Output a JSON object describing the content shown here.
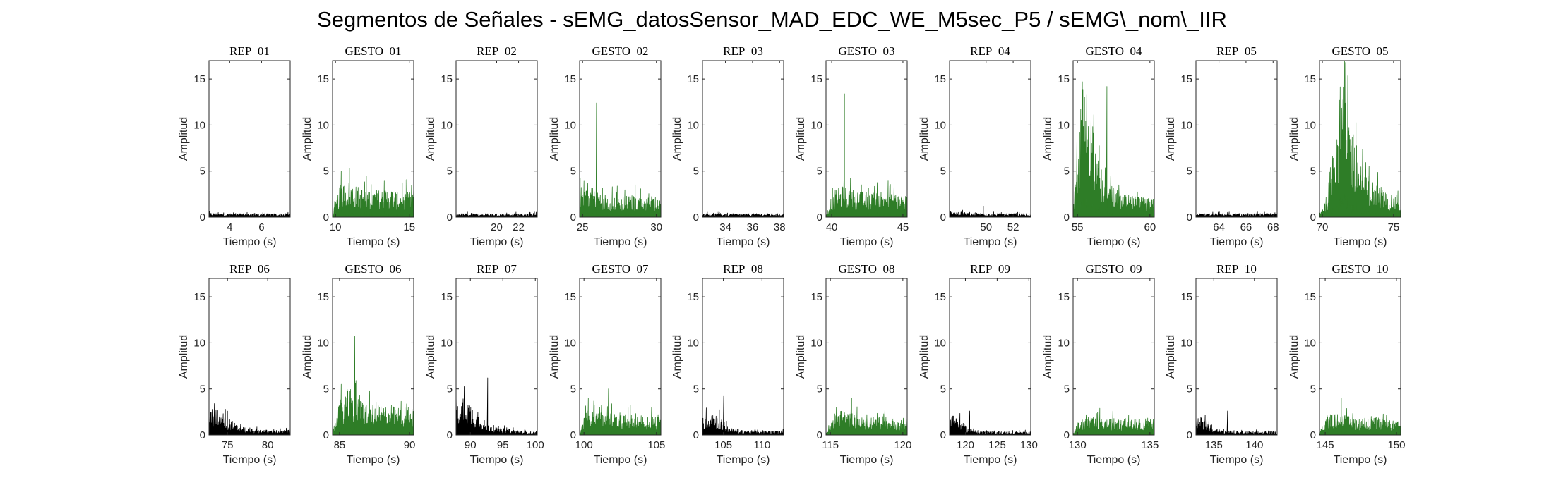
{
  "title": "Segmentos de Señales - sEMG_datosSensor_MAD_EDC_WE_M5sec_P5 / sEMG\\_nom\\_IIR",
  "colors": {
    "rep": "#000000",
    "gesto": "#2e7d27",
    "axis": "#262626"
  },
  "chart_data": [
    {
      "type": "area",
      "title": "REP_01",
      "xlabel": "Tiempo (s)",
      "ylabel": "Amplitud",
      "xlim": [
        2.7,
        7.8
      ],
      "ylim": [
        0,
        17
      ],
      "xticks": [
        4,
        6
      ],
      "yticks": [
        0,
        5,
        10,
        15
      ],
      "color": "rep",
      "amp": [
        0.35,
        0.3,
        0.3,
        0.3,
        0.3,
        0.3
      ]
    },
    {
      "type": "area",
      "title": "GESTO_01",
      "xlabel": "Tiempo (s)",
      "ylabel": "Amplitud",
      "xlim": [
        9.8,
        15.3
      ],
      "ylim": [
        0,
        17
      ],
      "xticks": [
        10,
        15
      ],
      "yticks": [
        0,
        5,
        10,
        15
      ],
      "color": "gesto",
      "peak": 5.3,
      "amp": [
        0.3,
        2.8,
        3.0,
        2.6,
        2.4,
        2.3,
        2.3,
        2.5,
        2.1,
        2.2,
        2.0
      ]
    },
    {
      "type": "area",
      "title": "REP_02",
      "xlabel": "Tiempo (s)",
      "ylabel": "Amplitud",
      "xlim": [
        16.3,
        23.7
      ],
      "ylim": [
        0,
        17
      ],
      "xticks": [
        20,
        22
      ],
      "yticks": [
        0,
        5,
        10,
        15
      ],
      "color": "rep",
      "amp": [
        0.3,
        0.3,
        0.3,
        0.3,
        0.3,
        0.3
      ]
    },
    {
      "type": "area",
      "title": "GESTO_02",
      "xlabel": "Tiempo (s)",
      "ylabel": "Amplitud",
      "xlim": [
        24.8,
        30.3
      ],
      "ylim": [
        0,
        17
      ],
      "xticks": [
        25,
        30
      ],
      "yticks": [
        0,
        5,
        10,
        15
      ],
      "color": "gesto",
      "peak": 12.4,
      "amp": [
        2.5,
        3.0,
        2.5,
        2.0,
        1.9,
        1.8,
        1.8,
        1.9,
        1.7,
        1.8,
        1.6
      ]
    },
    {
      "type": "area",
      "title": "REP_03",
      "xlabel": "Tiempo (s)",
      "ylabel": "Amplitud",
      "xlim": [
        32.3,
        38.3
      ],
      "ylim": [
        0,
        17
      ],
      "xticks": [
        34,
        36,
        38
      ],
      "yticks": [
        0,
        5,
        10,
        15
      ],
      "color": "rep",
      "amp": [
        0.3,
        0.3,
        0.3,
        0.3,
        0.3,
        0.3
      ]
    },
    {
      "type": "area",
      "title": "GESTO_03",
      "xlabel": "Tiempo (s)",
      "ylabel": "Amplitud",
      "xlim": [
        39.6,
        45.3
      ],
      "ylim": [
        0,
        17
      ],
      "xticks": [
        40,
        45
      ],
      "yticks": [
        0,
        5,
        10,
        15
      ],
      "color": "gesto",
      "peak": 13.4,
      "amp": [
        0.3,
        2.2,
        2.6,
        2.4,
        2.2,
        2.1,
        2.1,
        2.3,
        2.0,
        2.1,
        1.9
      ]
    },
    {
      "type": "area",
      "title": "REP_04",
      "xlabel": "Tiempo (s)",
      "ylabel": "Amplitud",
      "xlim": [
        47.3,
        53.3
      ],
      "ylim": [
        0,
        17
      ],
      "xticks": [
        50,
        52
      ],
      "yticks": [
        0,
        5,
        10,
        15
      ],
      "color": "rep",
      "peak": 1.2,
      "amp": [
        0.5,
        0.4,
        0.35,
        0.3,
        0.3,
        0.3
      ]
    },
    {
      "type": "area",
      "title": "GESTO_04",
      "xlabel": "Tiempo (s)",
      "ylabel": "Amplitud",
      "xlim": [
        54.7,
        60.3
      ],
      "ylim": [
        0,
        17
      ],
      "xticks": [
        55,
        60
      ],
      "yticks": [
        0,
        5,
        10,
        15
      ],
      "color": "gesto",
      "peak": 14.2,
      "amp": [
        0.4,
        9.5,
        12.0,
        5.0,
        3.0,
        2.5,
        2.0,
        1.8,
        1.7,
        1.6,
        1.5
      ]
    },
    {
      "type": "area",
      "title": "REP_05",
      "xlabel": "Tiempo (s)",
      "ylabel": "Amplitud",
      "xlim": [
        62.3,
        68.3
      ],
      "ylim": [
        0,
        17
      ],
      "xticks": [
        64,
        66,
        68
      ],
      "yticks": [
        0,
        5,
        10,
        15
      ],
      "color": "rep",
      "amp": [
        0.3,
        0.3,
        0.3,
        0.3,
        0.3,
        0.3
      ]
    },
    {
      "type": "area",
      "title": "GESTO_05",
      "xlabel": "Tiempo (s)",
      "ylabel": "Amplitud",
      "xlim": [
        69.8,
        75.5
      ],
      "ylim": [
        0,
        17
      ],
      "xticks": [
        70,
        75
      ],
      "yticks": [
        0,
        5,
        10,
        15
      ],
      "color": "gesto",
      "peak": 16.8,
      "amp": [
        0.4,
        2.0,
        9.0,
        11.0,
        8.0,
        5.0,
        3.5,
        2.8,
        2.2,
        1.8,
        1.5
      ]
    },
    {
      "type": "area",
      "title": "REP_06",
      "xlabel": "Tiempo (s)",
      "ylabel": "Amplitud",
      "xlim": [
        72.7,
        82.8
      ],
      "ylim": [
        0,
        17
      ],
      "xticks": [
        75,
        80
      ],
      "yticks": [
        0,
        5,
        10,
        15
      ],
      "color": "rep",
      "amp": [
        2.4,
        2.2,
        1.6,
        0.9,
        0.6,
        0.5,
        0.45,
        0.4,
        0.4,
        0.4
      ]
    },
    {
      "type": "area",
      "title": "GESTO_06",
      "xlabel": "Tiempo (s)",
      "ylabel": "Amplitud",
      "xlim": [
        84.5,
        90.3
      ],
      "ylim": [
        0,
        17
      ],
      "xticks": [
        85,
        90
      ],
      "yticks": [
        0,
        5,
        10,
        15
      ],
      "color": "gesto",
      "peak": 10.7,
      "amp": [
        0.3,
        3.0,
        4.0,
        3.2,
        2.8,
        2.6,
        2.4,
        2.5,
        2.3,
        2.4,
        2.2
      ]
    },
    {
      "type": "area",
      "title": "REP_07",
      "xlabel": "Tiempo (s)",
      "ylabel": "Amplitud",
      "xlim": [
        87.8,
        100.3
      ],
      "ylim": [
        0,
        17
      ],
      "xticks": [
        90,
        95,
        100
      ],
      "yticks": [
        0,
        5,
        10,
        15
      ],
      "color": "rep",
      "peak": 6.2,
      "amp": [
        3.0,
        3.5,
        2.2,
        1.2,
        0.8,
        0.6,
        0.5,
        0.4,
        0.3,
        0.3
      ]
    },
    {
      "type": "area",
      "title": "GESTO_07",
      "xlabel": "Tiempo (s)",
      "ylabel": "Amplitud",
      "xlim": [
        99.7,
        105.3
      ],
      "ylim": [
        0,
        17
      ],
      "xticks": [
        100,
        105
      ],
      "yticks": [
        0,
        5,
        10,
        15
      ],
      "color": "gesto",
      "peak": 5.0,
      "amp": [
        0.3,
        2.5,
        2.4,
        2.0,
        1.9,
        1.8,
        1.7,
        1.8,
        1.6,
        1.7,
        1.5
      ]
    },
    {
      "type": "area",
      "title": "REP_08",
      "xlabel": "Tiempo (s)",
      "ylabel": "Amplitud",
      "xlim": [
        102.3,
        112.8
      ],
      "ylim": [
        0,
        17
      ],
      "xticks": [
        105,
        110
      ],
      "yticks": [
        0,
        5,
        10,
        15
      ],
      "color": "rep",
      "peak": 4.2,
      "amp": [
        1.5,
        2.2,
        1.4,
        0.6,
        0.4,
        0.4,
        0.35,
        0.35,
        0.35,
        0.35
      ]
    },
    {
      "type": "area",
      "title": "GESTO_08",
      "xlabel": "Tiempo (s)",
      "ylabel": "Amplitud",
      "xlim": [
        114.7,
        120.3
      ],
      "ylim": [
        0,
        17
      ],
      "xticks": [
        115,
        120
      ],
      "yticks": [
        0,
        5,
        10,
        15
      ],
      "color": "gesto",
      "peak": 4.0,
      "amp": [
        0.3,
        1.9,
        2.0,
        1.8,
        1.6,
        1.5,
        1.5,
        1.6,
        1.4,
        1.3,
        1.2
      ]
    },
    {
      "type": "area",
      "title": "REP_09",
      "xlabel": "Tiempo (s)",
      "ylabel": "Amplitud",
      "xlim": [
        117.5,
        130.3
      ],
      "ylim": [
        0,
        17
      ],
      "xticks": [
        120,
        125,
        130
      ],
      "yticks": [
        0,
        5,
        10,
        15
      ],
      "color": "rep",
      "peak": 2.6,
      "amp": [
        1.8,
        1.4,
        0.6,
        0.4,
        0.3,
        0.3,
        0.3,
        0.3,
        0.3,
        0.3
      ]
    },
    {
      "type": "area",
      "title": "GESTO_09",
      "xlabel": "Tiempo (s)",
      "ylabel": "Amplitud",
      "xlim": [
        129.7,
        135.3
      ],
      "ylim": [
        0,
        17
      ],
      "xticks": [
        130,
        135
      ],
      "yticks": [
        0,
        5,
        10,
        15
      ],
      "color": "gesto",
      "peak": 2.9,
      "amp": [
        0.3,
        1.4,
        1.5,
        1.4,
        1.3,
        1.4,
        1.3,
        1.4,
        1.3,
        1.4,
        1.3
      ]
    },
    {
      "type": "area",
      "title": "REP_10",
      "xlabel": "Tiempo (s)",
      "ylabel": "Amplitud",
      "xlim": [
        132.8,
        142.8
      ],
      "ylim": [
        0,
        17
      ],
      "xticks": [
        135,
        140
      ],
      "yticks": [
        0,
        5,
        10,
        15
      ],
      "color": "rep",
      "peak": 2.6,
      "amp": [
        1.4,
        1.6,
        0.7,
        0.35,
        0.3,
        0.3,
        0.3,
        0.3,
        0.3,
        0.3
      ]
    },
    {
      "type": "area",
      "title": "GESTO_10",
      "xlabel": "Tiempo (s)",
      "ylabel": "Amplitud",
      "xlim": [
        144.6,
        150.3
      ],
      "ylim": [
        0,
        17
      ],
      "xticks": [
        145,
        150
      ],
      "yticks": [
        0,
        5,
        10,
        15
      ],
      "color": "gesto",
      "peak": 4.0,
      "amp": [
        0.3,
        1.6,
        1.8,
        1.7,
        1.5,
        1.4,
        1.4,
        1.5,
        1.3,
        1.2,
        1.1
      ]
    }
  ]
}
